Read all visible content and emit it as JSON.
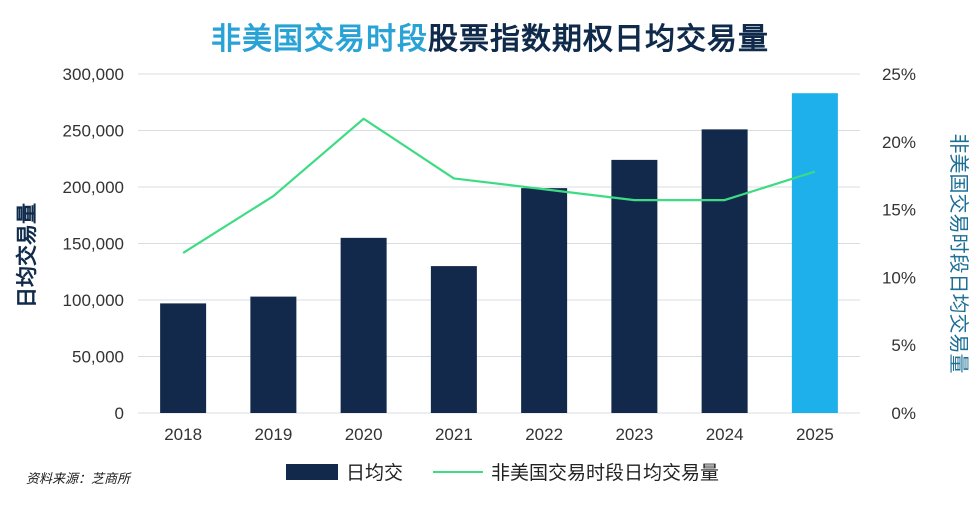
{
  "title": {
    "highlight": "非美国交易时段",
    "rest": "股票指数期权日均交易量"
  },
  "source": "资料来源：芝商所",
  "colors": {
    "bar": "#13294b",
    "bar_highlight": "#1eb0ea",
    "line": "#3ddc84",
    "title_highlight": "#29a3d6",
    "title": "#0f2a4a",
    "grid": "#d9dde3"
  },
  "chart_data": {
    "type": "bar",
    "categories": [
      "2018",
      "2019",
      "2020",
      "2021",
      "2022",
      "2023",
      "2024",
      "2025"
    ],
    "series": [
      {
        "name": "日均交",
        "axis": "left",
        "values": [
          97000,
          103000,
          155000,
          130000,
          199000,
          224000,
          251000,
          283000
        ],
        "highlight_index": 7
      },
      {
        "name": "非美国交易时段日均交易量",
        "axis": "right",
        "type": "line",
        "values": [
          11.8,
          16.0,
          21.7,
          17.3,
          16.5,
          15.7,
          15.7,
          17.8
        ]
      }
    ],
    "ylabel": "日均交易量",
    "y2label": "非美国交易时段日均交易量",
    "ylim": [
      0,
      300000
    ],
    "y2lim": [
      0,
      25
    ],
    "yticks": [
      "0",
      "50,000",
      "100,000",
      "150,000",
      "200,000",
      "250,000",
      "300,000"
    ],
    "y2ticks": [
      "0%",
      "5%",
      "10%",
      "15%",
      "20%",
      "25%"
    ],
    "grid": true,
    "legend_position": "bottom"
  }
}
